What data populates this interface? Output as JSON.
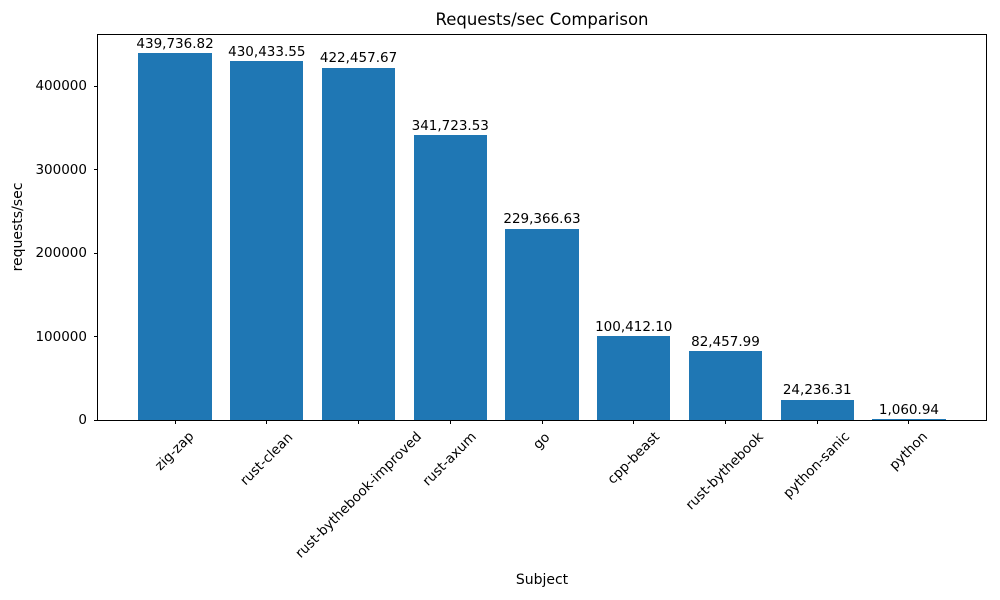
{
  "chart_data": {
    "type": "bar",
    "title": "Requests/sec Comparison",
    "xlabel": "Subject",
    "ylabel": "requests/sec",
    "categories": [
      "zig-zap",
      "rust-clean",
      "rust-bythebook-improved",
      "rust-axum",
      "go",
      "cpp-beast",
      "rust-bythebook",
      "python-sanic",
      "python"
    ],
    "values": [
      439736.82,
      430433.55,
      422457.67,
      341723.53,
      229366.63,
      100412.1,
      82457.99,
      24236.31,
      1060.94
    ],
    "value_labels": [
      "439,736.82",
      "430,433.55",
      "422,457.67",
      "341,723.53",
      "229,366.63",
      "100,412.10",
      "82,457.99",
      "24,236.31",
      "1,060.94"
    ],
    "yticks": [
      0,
      100000,
      200000,
      300000,
      400000
    ],
    "ytick_labels": [
      "0",
      "100000",
      "200000",
      "300000",
      "400000"
    ],
    "ylim": [
      0,
      461723.66
    ],
    "bar_color": "#1f77b4",
    "grid": false,
    "legend_position": "none",
    "x_tick_rotation_deg": 45,
    "bar_relative_width": 0.8
  }
}
